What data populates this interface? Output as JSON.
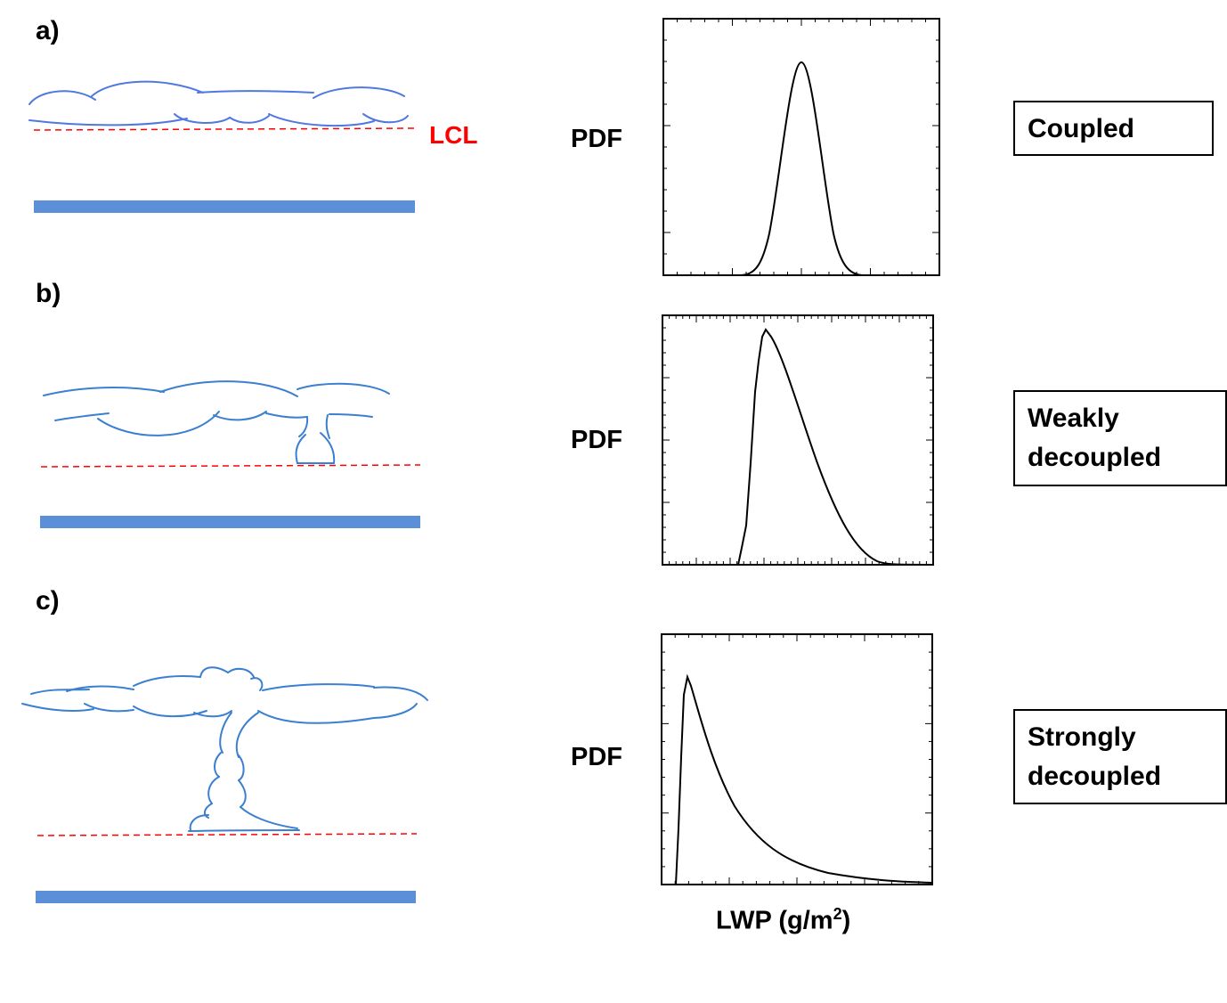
{
  "panels": [
    {
      "label": "a)",
      "regime": [
        "Coupled"
      ]
    },
    {
      "label": "b)",
      "regime": [
        "Weakly",
        "decoupled"
      ]
    },
    {
      "label": "c)",
      "regime": [
        "Strongly",
        "decoupled"
      ]
    }
  ],
  "lcl_label": "LCL",
  "pdf_label": "PDF",
  "xaxis": {
    "text": "LWP (g/m",
    "superscript": "2",
    "suffix": ")"
  },
  "colors": {
    "cloud": "#3b7fd0",
    "lcl": "#ff0000",
    "surface": "#5b8fd8"
  },
  "chart_data": [
    {
      "type": "line",
      "ylabel": "PDF",
      "shape": "near-symmetric peak (coupled)"
    },
    {
      "type": "line",
      "ylabel": "PDF",
      "shape": "right-skewed peak (weakly decoupled)"
    },
    {
      "type": "line",
      "ylabel": "PDF",
      "xlabel": "LWP (g/m2)",
      "shape": "strongly right-skewed with long tail (strongly decoupled)"
    }
  ]
}
